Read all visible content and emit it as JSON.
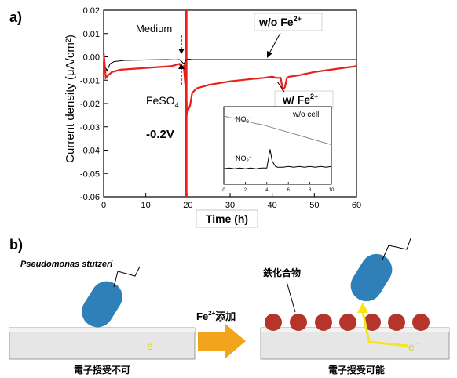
{
  "panel_a": {
    "label": "a)",
    "ylabel": "Current density (μA/cm²)",
    "xlabel": "Time (h)",
    "annotations": {
      "medium": "Medium",
      "feso4_main": "FeSO",
      "feso4_sub": "4",
      "potential": "-0.2V",
      "wo_fe_main": "w/o Fe",
      "wo_fe_sup": "2+",
      "w_fe_main": "w/ Fe",
      "w_fe_sup": "2+"
    },
    "inset": {
      "title": "w/o cell",
      "no3_main": "NO",
      "no3_sub": "3",
      "no3_sup": "−",
      "no2_main": "NO",
      "no2_sub": "2",
      "no2_sup": "−"
    }
  },
  "panel_b": {
    "label": "b)",
    "bacterium_name": "Pseudomonas stutzeri",
    "addition_main": "Fe",
    "addition_sup": "2+",
    "addition_rest": "添加",
    "iron_compound": "鉄化合物",
    "electron": "e",
    "electron_sup": "−",
    "caption_left": "電子授受不可",
    "caption_right": "電子授受可能",
    "colors": {
      "bacterium": "#2f7fb8",
      "particle": "#b5352a",
      "arrow": "#f2a51c",
      "electron_path": "#f5e61b"
    }
  },
  "chart_data": [
    {
      "type": "line",
      "xlabel": "Time (h)",
      "ylabel": "Current density (μA/cm²)",
      "xlim": [
        0,
        60
      ],
      "ylim": [
        -0.06,
        0.02
      ],
      "x_ticks": [
        0,
        10,
        20,
        30,
        40,
        50,
        60
      ],
      "y_ticks": [
        -0.06,
        -0.05,
        -0.04,
        -0.03,
        -0.02,
        -0.01,
        0.0,
        0.01,
        0.02
      ],
      "y_tick_labels": [
        "-0.06",
        "-0.05",
        "-0.04",
        "-0.03",
        "-0.02",
        "-0.01",
        "0.00",
        "0.01",
        "0.02"
      ],
      "series": [
        {
          "name": "w/o Fe2+",
          "color": "#000000",
          "x": [
            0,
            0.3,
            0.8,
            1.5,
            2.5,
            5,
            10,
            15,
            17,
            18,
            18.5,
            19,
            19.5,
            20,
            21,
            25,
            30,
            35,
            40,
            45,
            50,
            55,
            60
          ],
          "y": [
            0.0,
            -0.004,
            -0.006,
            -0.003,
            -0.002,
            -0.0015,
            -0.0013,
            -0.0012,
            -0.0013,
            -0.0012,
            -0.002,
            -0.003,
            -0.0015,
            -0.001,
            -0.0012,
            -0.0012,
            -0.0012,
            -0.0012,
            -0.0012,
            -0.0012,
            -0.0012,
            -0.0012,
            -0.0012
          ]
        },
        {
          "name": "w/ Fe2+",
          "color": "#e8201a",
          "x": [
            0,
            0.5,
            1,
            2,
            4,
            8,
            12,
            16,
            18,
            18.5,
            19,
            19.6,
            19.8,
            20.0,
            20.5,
            21,
            22,
            25,
            30,
            35,
            38,
            40,
            41,
            42,
            42.5,
            43,
            43.5,
            44,
            46,
            50,
            55,
            60
          ],
          "y": [
            0.002,
            -0.009,
            -0.008,
            -0.0065,
            -0.0055,
            -0.005,
            -0.0045,
            -0.004,
            -0.003,
            -0.005,
            -0.004,
            -0.017,
            -0.025,
            -0.023,
            -0.021,
            -0.0155,
            -0.0135,
            -0.012,
            -0.0105,
            -0.0095,
            -0.009,
            -0.0085,
            -0.009,
            -0.009,
            -0.014,
            -0.013,
            -0.009,
            -0.0085,
            -0.008,
            -0.0065,
            -0.0052,
            -0.004
          ]
        }
      ],
      "markers": [
        {
          "label": "Medium",
          "x": 18.2
        },
        {
          "label": "FeSO4",
          "x": 18.2
        }
      ],
      "potential_step_x": 19.6
    },
    {
      "type": "line",
      "title": "w/o cell",
      "xlim": [
        0,
        10
      ],
      "x_ticks": [
        0,
        2,
        4,
        6,
        8,
        10
      ],
      "series": [
        {
          "name": "NO3−",
          "color": "#888888",
          "x": [
            0,
            0.5,
            1,
            1.5,
            2,
            2.5,
            3,
            3.5,
            4,
            4.5,
            5,
            5.5,
            6,
            6.5,
            7,
            7.5,
            8,
            8.5,
            9,
            9.5,
            10
          ],
          "y": [
            0.88,
            0.86,
            0.85,
            0.83,
            0.82,
            0.8,
            0.78,
            0.77,
            0.75,
            0.73,
            0.71,
            0.69,
            0.67,
            0.65,
            0.63,
            0.61,
            0.59,
            0.57,
            0.55,
            0.53,
            0.51
          ]
        },
        {
          "name": "NO2−",
          "color": "#000000",
          "x": [
            0,
            0.5,
            1,
            1.5,
            2,
            2.5,
            3,
            3.5,
            4,
            4.3,
            4.5,
            4.8,
            5,
            5.5,
            6,
            6.5,
            7,
            7.5,
            8,
            8.5,
            9,
            9.5,
            10
          ],
          "y": [
            0.2,
            0.21,
            0.2,
            0.21,
            0.2,
            0.21,
            0.2,
            0.21,
            0.21,
            0.45,
            0.3,
            0.23,
            0.22,
            0.22,
            0.23,
            0.22,
            0.23,
            0.22,
            0.23,
            0.22,
            0.23,
            0.22,
            0.23
          ]
        }
      ]
    }
  ]
}
